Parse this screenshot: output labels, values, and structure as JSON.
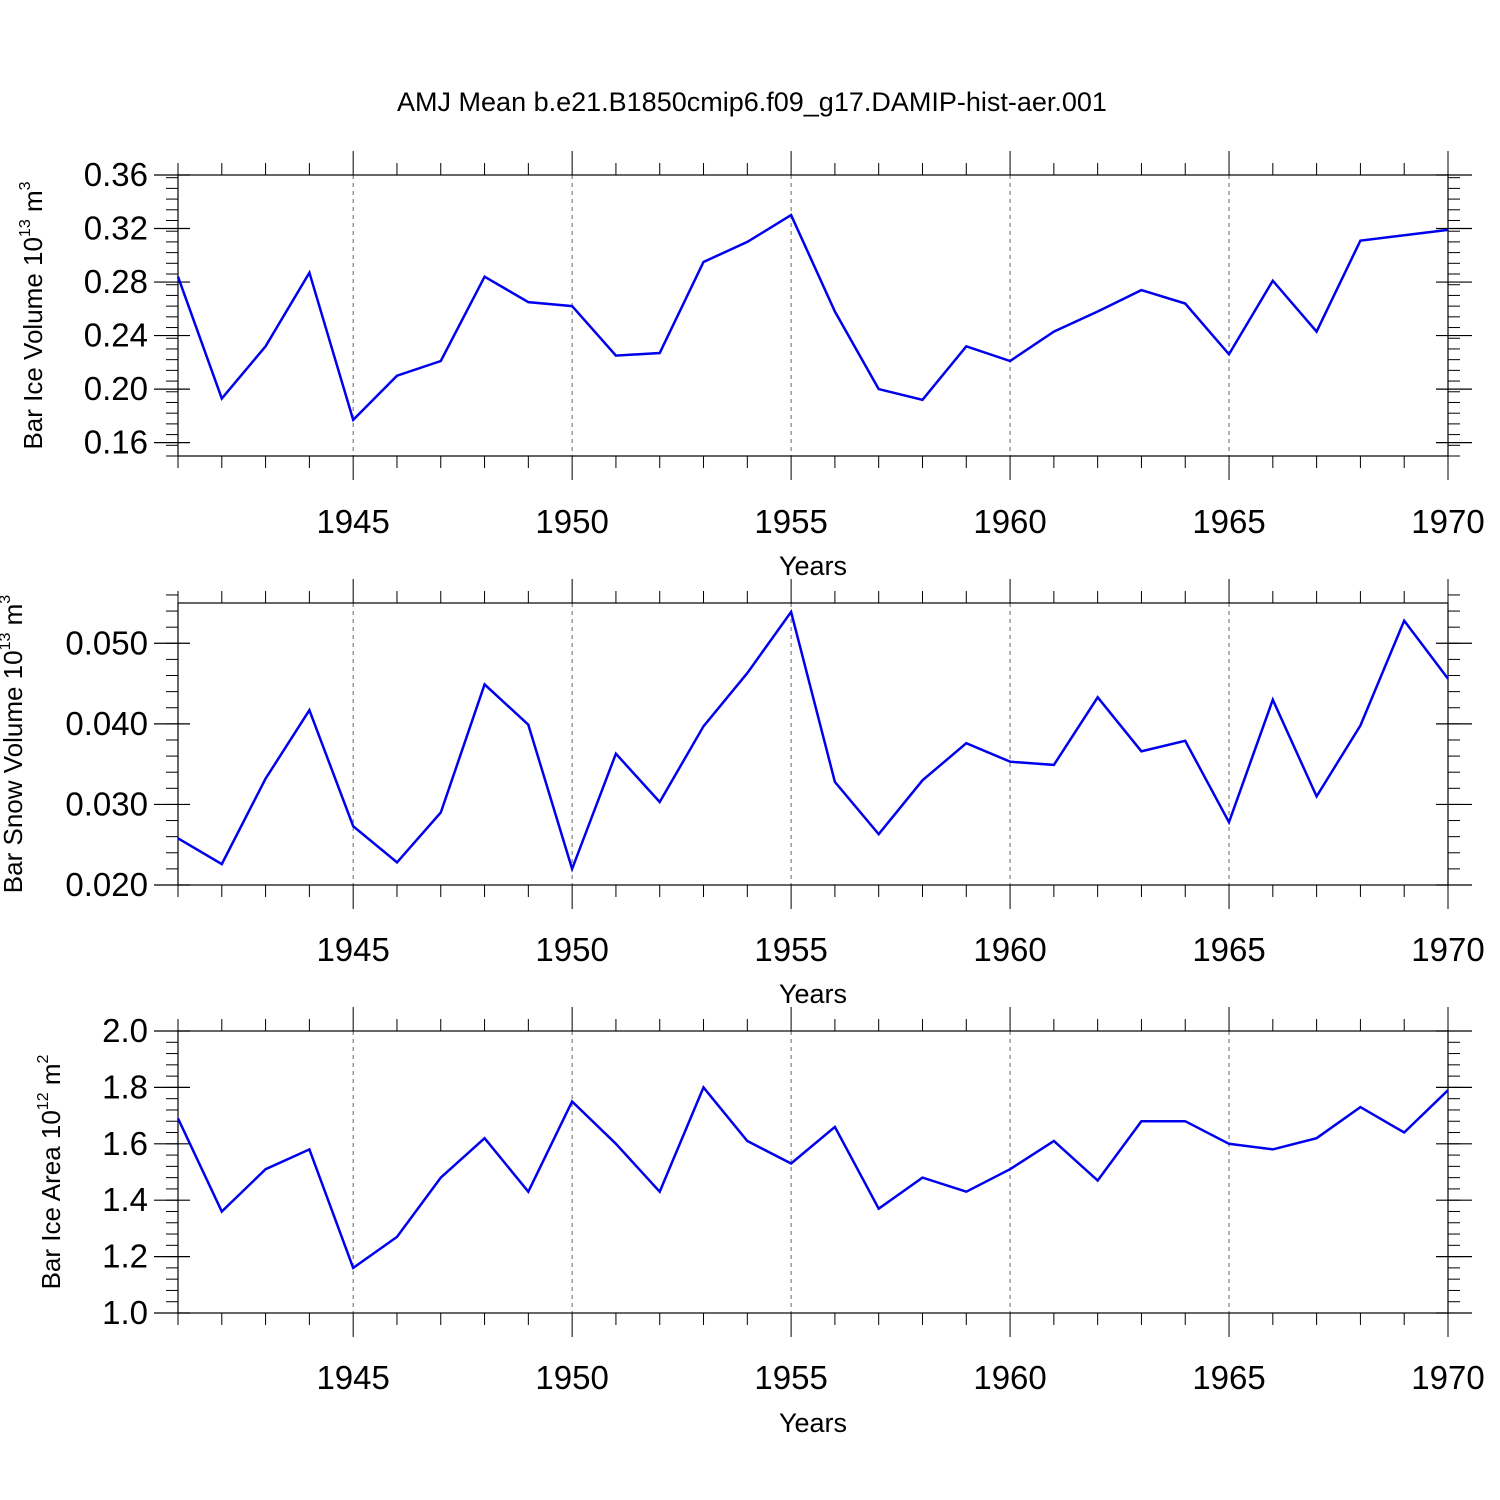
{
  "title": "AMJ Mean b.e21.B1850cmip6.f09_g17.DAMIP-hist-aer.001",
  "colors": {
    "series": "#0000ee",
    "axis": "#000000",
    "grid": "#666666"
  },
  "chart_data": [
    {
      "type": "line",
      "ylabel_main": "Bar Ice Volume 10",
      "ylabel_exp": "13",
      "ylabel_unit": " m",
      "ylabel_unit_exp": "3",
      "xlabel": "Years",
      "xlim": [
        1941,
        1970
      ],
      "ylim": [
        0.15,
        0.36
      ],
      "yticks": [
        0.16,
        0.2,
        0.24,
        0.28,
        0.32,
        0.36
      ],
      "ytick_labels": [
        "0.16",
        "0.20",
        "0.24",
        "0.28",
        "0.32",
        "0.36"
      ],
      "yminor_step": 0.008,
      "xticks": [
        1945,
        1950,
        1955,
        1960,
        1965,
        1970
      ],
      "xtick_labels": [
        "1945",
        "1950",
        "1955",
        "1960",
        "1965",
        "1970"
      ],
      "x": [
        1941,
        1942,
        1943,
        1944,
        1945,
        1946,
        1947,
        1948,
        1949,
        1950,
        1951,
        1952,
        1953,
        1954,
        1955,
        1956,
        1957,
        1958,
        1959,
        1960,
        1961,
        1962,
        1963,
        1964,
        1965,
        1966,
        1967,
        1968,
        1969,
        1970
      ],
      "values": [
        0.284,
        0.193,
        0.232,
        0.287,
        0.177,
        0.21,
        0.221,
        0.284,
        0.265,
        0.262,
        0.225,
        0.227,
        0.295,
        0.31,
        0.33,
        0.258,
        0.2,
        0.192,
        0.232,
        0.221,
        0.243,
        0.258,
        0.274,
        0.264,
        0.226,
        0.281,
        0.243,
        0.311,
        0.315,
        0.319
      ]
    },
    {
      "type": "line",
      "ylabel_main": "Bar Snow Volume 10",
      "ylabel_exp": "13",
      "ylabel_unit": " m",
      "ylabel_unit_exp": "3",
      "xlabel": "Years",
      "xlim": [
        1941,
        1970
      ],
      "ylim": [
        0.02,
        0.055
      ],
      "yticks": [
        0.02,
        0.03,
        0.04,
        0.05
      ],
      "ytick_labels": [
        "0.020",
        "0.030",
        "0.040",
        "0.050"
      ],
      "yminor_step": 0.002,
      "xticks": [
        1945,
        1950,
        1955,
        1960,
        1965,
        1970
      ],
      "xtick_labels": [
        "1945",
        "1950",
        "1955",
        "1960",
        "1965",
        "1970"
      ],
      "x": [
        1941,
        1942,
        1943,
        1944,
        1945,
        1946,
        1947,
        1948,
        1949,
        1950,
        1951,
        1952,
        1953,
        1954,
        1955,
        1956,
        1957,
        1958,
        1959,
        1960,
        1961,
        1962,
        1963,
        1964,
        1965,
        1966,
        1967,
        1968,
        1969,
        1970
      ],
      "values": [
        0.0258,
        0.0226,
        0.0332,
        0.0417,
        0.0273,
        0.0228,
        0.029,
        0.0449,
        0.0399,
        0.022,
        0.0363,
        0.0303,
        0.0397,
        0.0463,
        0.0539,
        0.0328,
        0.0263,
        0.033,
        0.0376,
        0.0353,
        0.0349,
        0.0433,
        0.0366,
        0.0379,
        0.0278,
        0.043,
        0.031,
        0.0398,
        0.0528,
        0.0456
      ]
    },
    {
      "type": "line",
      "ylabel_main": "Bar Ice Area 10",
      "ylabel_exp": "12",
      "ylabel_unit": " m",
      "ylabel_unit_exp": "2",
      "xlabel": "Years",
      "xlim": [
        1941,
        1970
      ],
      "ylim": [
        1.0,
        2.0
      ],
      "yticks": [
        1.0,
        1.2,
        1.4,
        1.6,
        1.8,
        2.0
      ],
      "ytick_labels": [
        "1.0",
        "1.2",
        "1.4",
        "1.6",
        "1.8",
        "2.0"
      ],
      "yminor_step": 0.04,
      "xticks": [
        1945,
        1950,
        1955,
        1960,
        1965,
        1970
      ],
      "xtick_labels": [
        "1945",
        "1950",
        "1955",
        "1960",
        "1965",
        "1970"
      ],
      "x": [
        1941,
        1942,
        1943,
        1944,
        1945,
        1946,
        1947,
        1948,
        1949,
        1950,
        1951,
        1952,
        1953,
        1954,
        1955,
        1956,
        1957,
        1958,
        1959,
        1960,
        1961,
        1962,
        1963,
        1964,
        1965,
        1966,
        1967,
        1968,
        1969,
        1970
      ],
      "values": [
        1.69,
        1.36,
        1.51,
        1.58,
        1.16,
        1.27,
        1.48,
        1.62,
        1.43,
        1.75,
        1.6,
        1.43,
        1.8,
        1.61,
        1.53,
        1.66,
        1.37,
        1.48,
        1.43,
        1.51,
        1.61,
        1.47,
        1.68,
        1.68,
        1.6,
        1.58,
        1.62,
        1.73,
        1.64,
        1.79
      ]
    }
  ]
}
